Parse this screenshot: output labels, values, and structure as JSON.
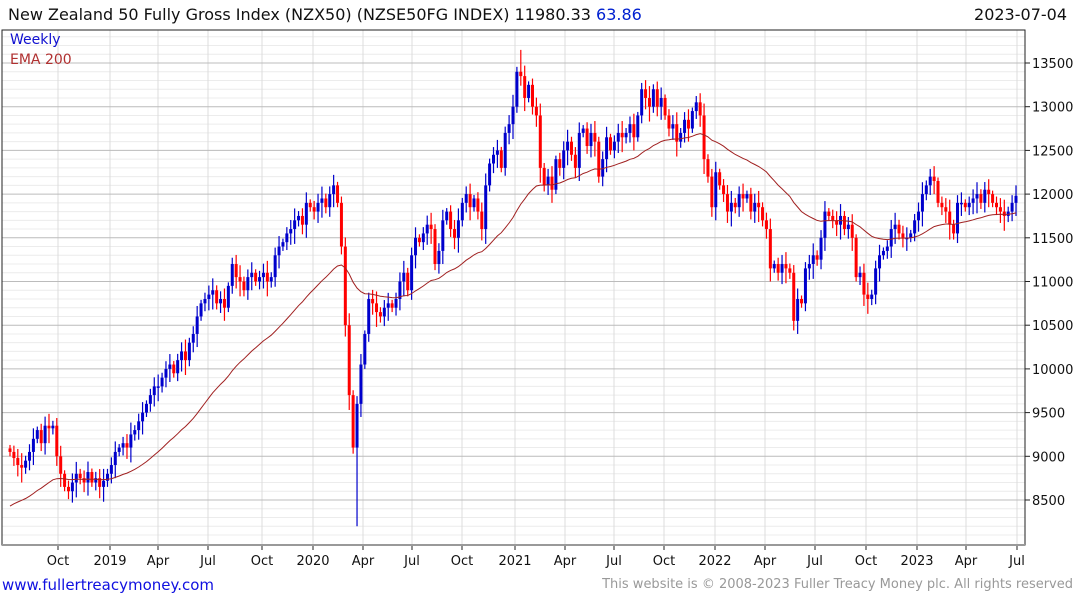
{
  "header": {
    "title": "New Zealand 50 Fully Gross Index (NZX50) (NZSE50FG INDEX) 11980.33",
    "change": "63.86",
    "date": "2023-07-04"
  },
  "legend": {
    "weekly": "Weekly",
    "ema": "EMA 200"
  },
  "footer": {
    "site": "www.fullertreacymoney.com",
    "copyright": "This website is © 2008-2023 Fuller Treacy Money plc. All rights reserved"
  },
  "colors": {
    "up": "#0000cc",
    "down": "#ff0000",
    "ema": "#a02020",
    "change": "#0020d0"
  },
  "chart_data": {
    "type": "candlestick",
    "title": "New Zealand 50 Fully Gross Index (NZX50) (NZSE50FG INDEX)",
    "frequency": "weekly",
    "ylim": [
      8000,
      13880
    ],
    "yticks": [
      "8500",
      "9000",
      "9500",
      "10000",
      "10500",
      "11000",
      "11500",
      "12000",
      "12500",
      "13000",
      "13500"
    ],
    "xticks": [
      "Oct",
      "2019",
      "Apr",
      "Jul",
      "Oct",
      "2020",
      "Apr",
      "Jul",
      "Oct",
      "2021",
      "Apr",
      "Jul",
      "Oct",
      "2022",
      "Apr",
      "Jul",
      "Oct",
      "2023",
      "Apr",
      "Jul"
    ],
    "ema_period_weeks": 41,
    "ema_start": 8430,
    "wick_overrides": [
      {
        "week": 89,
        "low": 8200
      },
      {
        "week": 202,
        "low": 10400
      },
      {
        "week": 131,
        "high": 13650
      }
    ],
    "closes": [
      9050,
      8980,
      8900,
      8870,
      8950,
      9050,
      9200,
      9300,
      9150,
      9350,
      9320,
      9350,
      9000,
      8800,
      8650,
      8600,
      8700,
      8800,
      8750,
      8700,
      8820,
      8700,
      8750,
      8650,
      8720,
      8800,
      8900,
      9050,
      9100,
      9150,
      9100,
      9250,
      9300,
      9400,
      9500,
      9600,
      9700,
      9800,
      9800,
      9900,
      10000,
      10050,
      9950,
      10100,
      10200,
      10100,
      10300,
      10400,
      10600,
      10750,
      10800,
      10850,
      10900,
      10750,
      10800,
      10700,
      10950,
      11200,
      11050,
      11000,
      10900,
      11050,
      11100,
      11000,
      11050,
      11100,
      11000,
      11050,
      11300,
      11400,
      11450,
      11550,
      11600,
      11700,
      11750,
      11650,
      11900,
      11850,
      11800,
      11900,
      11950,
      11850,
      12000,
      12100,
      11900,
      11400,
      10500,
      9700,
      9100,
      9600,
      10050,
      10400,
      10800,
      10750,
      10650,
      10600,
      10700,
      10750,
      10700,
      10800,
      11000,
      11100,
      10900,
      11300,
      11500,
      11450,
      11550,
      11650,
      11600,
      11200,
      11350,
      11700,
      11800,
      11600,
      11500,
      11700,
      11900,
      12000,
      11850,
      11950,
      11800,
      11600,
      12100,
      12350,
      12450,
      12500,
      12300,
      12700,
      12800,
      13000,
      13400,
      13350,
      13100,
      13250,
      13000,
      12900,
      12300,
      12100,
      12200,
      12050,
      12400,
      12300,
      12500,
      12600,
      12450,
      12300,
      12700,
      12750,
      12550,
      12700,
      12600,
      12200,
      12400,
      12650,
      12500,
      12600,
      12700,
      12650,
      12700,
      12800,
      12650,
      12900,
      13200,
      13100,
      13000,
      13200,
      13000,
      13100,
      12900,
      12750,
      12800,
      12600,
      12700,
      12850,
      12750,
      12950,
      13050,
      12900,
      12400,
      12200,
      11850,
      12250,
      12100,
      12000,
      11800,
      11900,
      11850,
      12000,
      11950,
      12000,
      11800,
      11900,
      11850,
      11700,
      11600,
      11150,
      11200,
      11100,
      11200,
      11150,
      11100,
      10550,
      10800,
      10750,
      11150,
      11200,
      11300,
      11250,
      11500,
      11800,
      11750,
      11700,
      11650,
      11750,
      11600,
      11650,
      11500,
      11050,
      11100,
      10850,
      10800,
      10850,
      11150,
      11300,
      11350,
      11400,
      11600,
      11650,
      11550,
      11500,
      11500,
      11550,
      11700,
      11800,
      12000,
      12100,
      12200,
      12150,
      11900,
      11850,
      11800,
      11650,
      11550,
      11900,
      11900,
      11850,
      11900,
      11950,
      12000,
      11900,
      12050,
      12000,
      11900,
      11850,
      11800,
      11750,
      11800,
      11900,
      11980
    ]
  }
}
